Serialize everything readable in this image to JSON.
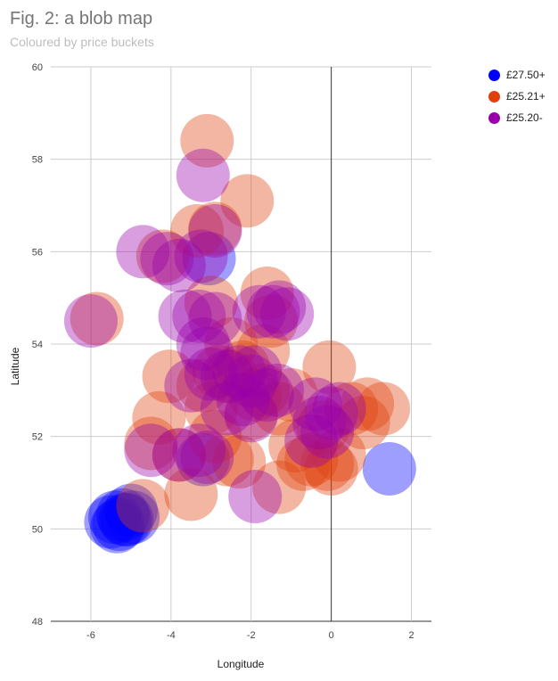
{
  "chart_data": {
    "type": "scatter",
    "title": "Fig. 2: a blob map",
    "subtitle": "Coloured by price buckets",
    "xlabel": "Longitude",
    "ylabel": "Latitude",
    "xlim": [
      -7,
      2.5
    ],
    "ylim": [
      48,
      60
    ],
    "xticks": [
      -6,
      -4,
      -2,
      0,
      2
    ],
    "yticks": [
      48,
      50,
      52,
      54,
      56,
      58,
      60
    ],
    "grid": true,
    "legend_position": "top-right",
    "series": [
      {
        "name": "£27.50+",
        "color": "#0000ff",
        "points": [
          [
            -5.5,
            50.15
          ],
          [
            -5.3,
            50.1
          ],
          [
            -5.2,
            50.3
          ],
          [
            -5.1,
            50.2
          ],
          [
            -5.0,
            50.4
          ],
          [
            -5.35,
            50.05
          ],
          [
            -5.15,
            50.2
          ],
          [
            -4.95,
            50.25
          ],
          [
            -5.4,
            50.25
          ],
          [
            1.45,
            51.3
          ],
          [
            -3.05,
            55.85
          ],
          [
            -3.2,
            51.5
          ]
        ]
      },
      {
        "name": "£25.21+",
        "color": "#e0400a",
        "points": [
          [
            -3.1,
            58.4
          ],
          [
            -2.1,
            57.1
          ],
          [
            -2.9,
            56.5
          ],
          [
            -5.85,
            54.55
          ],
          [
            -3.35,
            56.45
          ],
          [
            -3.0,
            54.9
          ],
          [
            -1.6,
            55.1
          ],
          [
            -1.5,
            54.5
          ],
          [
            -2.5,
            54.0
          ],
          [
            -1.7,
            53.85
          ],
          [
            -3.2,
            53.1
          ],
          [
            -2.8,
            53.4
          ],
          [
            -4.05,
            53.3
          ],
          [
            -4.3,
            52.4
          ],
          [
            -4.5,
            51.85
          ],
          [
            -3.5,
            50.75
          ],
          [
            -4.7,
            50.5
          ],
          [
            -3.8,
            51.6
          ],
          [
            -2.6,
            51.5
          ],
          [
            -2.3,
            51.45
          ],
          [
            -2.0,
            52.5
          ],
          [
            -1.3,
            52.6
          ],
          [
            -1.3,
            50.9
          ],
          [
            -0.7,
            51.4
          ],
          [
            -0.5,
            51.5
          ],
          [
            -0.1,
            51.4
          ],
          [
            0.2,
            51.6
          ],
          [
            0.0,
            51.3
          ],
          [
            -0.9,
            51.8
          ],
          [
            -0.2,
            52.2
          ],
          [
            0.5,
            52.6
          ],
          [
            0.9,
            52.7
          ],
          [
            1.3,
            52.6
          ],
          [
            0.8,
            52.3
          ],
          [
            -0.05,
            53.5
          ],
          [
            -1.9,
            52.9
          ],
          [
            -2.5,
            53.3
          ],
          [
            -2.2,
            53.5
          ],
          [
            -1.7,
            53.0
          ],
          [
            -3.0,
            52.6
          ],
          [
            -2.9,
            52.0
          ],
          [
            -1.0,
            52.9
          ],
          [
            -4.2,
            55.9
          ]
        ]
      },
      {
        "name": "£25.20-",
        "color": "#9900aa",
        "points": [
          [
            -3.2,
            57.65
          ],
          [
            -2.9,
            56.45
          ],
          [
            -4.7,
            56.0
          ],
          [
            -4.1,
            55.85
          ],
          [
            -3.8,
            55.7
          ],
          [
            -3.25,
            55.9
          ],
          [
            -6.0,
            54.5
          ],
          [
            -3.65,
            54.6
          ],
          [
            -3.3,
            54.6
          ],
          [
            -1.8,
            54.7
          ],
          [
            -1.45,
            54.7
          ],
          [
            -1.3,
            54.8
          ],
          [
            -1.1,
            54.65
          ],
          [
            -2.9,
            54.55
          ],
          [
            -3.2,
            54.0
          ],
          [
            -3.1,
            53.8
          ],
          [
            -3.0,
            53.35
          ],
          [
            -2.6,
            53.3
          ],
          [
            -2.3,
            53.4
          ],
          [
            -2.0,
            53.2
          ],
          [
            -1.9,
            53.4
          ],
          [
            -1.6,
            52.9
          ],
          [
            -1.35,
            53.0
          ],
          [
            -2.2,
            52.8
          ],
          [
            -2.6,
            52.6
          ],
          [
            -2.0,
            52.45
          ],
          [
            -3.5,
            53.1
          ],
          [
            -4.5,
            51.7
          ],
          [
            -3.8,
            51.6
          ],
          [
            -3.3,
            51.7
          ],
          [
            -3.1,
            51.55
          ],
          [
            -1.9,
            50.7
          ],
          [
            -0.5,
            51.9
          ],
          [
            -0.3,
            52.3
          ],
          [
            0.0,
            52.5
          ],
          [
            -0.4,
            52.7
          ],
          [
            0.2,
            52.6
          ],
          [
            -0.1,
            52.1
          ]
        ]
      }
    ]
  }
}
